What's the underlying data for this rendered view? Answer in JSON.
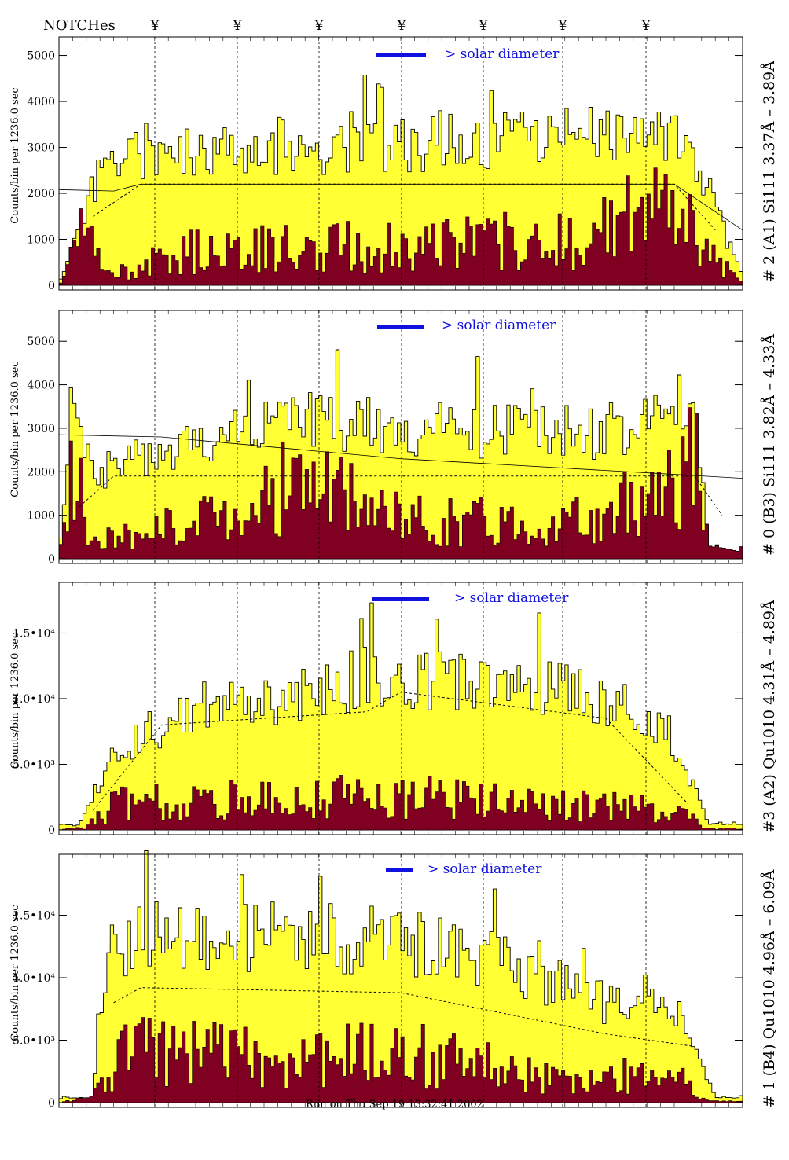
{
  "header": {
    "notches_label": "NOTCHes",
    "notch_symbol": "¥",
    "notch_positions": [
      197,
      302,
      406,
      511,
      615,
      716,
      822
    ]
  },
  "footer": {
    "run_text": "Run on Thu Sep 19 13:32:41 2002"
  },
  "colors": {
    "fill_total": "#ffff33",
    "fill_sub": "#7f0020",
    "outline": "#000000",
    "accent": "#1010e0"
  },
  "chart_data": [
    {
      "type": "area",
      "right_label": "# 2 (A1) Si111  3.37Å – 3.89Å",
      "ylabel": "Counts/bin per   1236.0 sec",
      "solar_label": "> solar diameter",
      "ylim": [
        0,
        5300
      ],
      "yticks": [
        0,
        1000,
        2000,
        3000,
        4000,
        5000
      ],
      "ytick_labels": [
        "0",
        "1000",
        "2000",
        "3000",
        "4000",
        "5000"
      ],
      "profile": [
        [
          0,
          0
        ],
        [
          0.05,
          2250
        ],
        [
          0.1,
          2900
        ],
        [
          0.5,
          3150
        ],
        [
          0.9,
          3200
        ],
        [
          0.95,
          2100
        ],
        [
          1,
          150
        ]
      ],
      "sub_profile": [
        [
          0,
          0
        ],
        [
          0.03,
          1400
        ],
        [
          0.07,
          200
        ],
        [
          0.2,
          750
        ],
        [
          0.5,
          850
        ],
        [
          0.75,
          1000
        ],
        [
          0.9,
          1800
        ],
        [
          0.97,
          400
        ],
        [
          1,
          100
        ]
      ],
      "dashed_profile": [
        [
          0.05,
          1500
        ],
        [
          0.12,
          2200
        ],
        [
          0.9,
          2200
        ],
        [
          0.96,
          1200
        ]
      ],
      "solid_profile": [
        [
          0,
          2080
        ],
        [
          0.08,
          2050
        ],
        [
          0.12,
          2200
        ],
        [
          0.9,
          2200
        ],
        [
          1,
          1200
        ]
      ],
      "seed": 11
    },
    {
      "type": "area",
      "right_label": "# 0 (B3) Si111  3.82Å – 4.33Å",
      "ylabel": "Counts/bin per   1236.0 sec",
      "solar_label": "> solar diameter",
      "ylim": [
        0,
        5600
      ],
      "yticks": [
        0,
        1000,
        2000,
        3000,
        4000,
        5000
      ],
      "ytick_labels": [
        "0",
        "1000",
        "2000",
        "3000",
        "4000",
        "5000"
      ],
      "profile": [
        [
          0,
          0
        ],
        [
          0.02,
          3200
        ],
        [
          0.05,
          2000
        ],
        [
          0.15,
          2400
        ],
        [
          0.3,
          3300
        ],
        [
          0.5,
          3000
        ],
        [
          0.8,
          2900
        ],
        [
          0.93,
          3600
        ],
        [
          0.95,
          300
        ],
        [
          1,
          200
        ]
      ],
      "sub_profile": [
        [
          0,
          0
        ],
        [
          0.02,
          2100
        ],
        [
          0.05,
          400
        ],
        [
          0.2,
          800
        ],
        [
          0.35,
          1800
        ],
        [
          0.5,
          900
        ],
        [
          0.8,
          850
        ],
        [
          0.93,
          2500
        ],
        [
          0.96,
          200
        ],
        [
          1,
          1500
        ]
      ],
      "dashed_profile": [
        [
          0.03,
          1200
        ],
        [
          0.08,
          1900
        ],
        [
          0.93,
          1900
        ],
        [
          0.97,
          1000
        ]
      ],
      "solid_profile": [
        [
          0,
          2850
        ],
        [
          0.15,
          2800
        ],
        [
          0.5,
          2300
        ],
        [
          1,
          1850
        ]
      ],
      "seed": 23
    },
    {
      "type": "area",
      "right_label": "#3 (A2) Qu1010  4.31Å – 4.89Å",
      "ylabel": "Counts/bin per   1236.0 sec",
      "solar_label": "> solar diameter",
      "ylim": [
        0,
        18500
      ],
      "yticks": [
        0,
        5000,
        10000,
        15000
      ],
      "ytick_labels": [
        "0",
        "5.0•10³",
        "1.0•10⁴",
        "1.5•10⁴"
      ],
      "profile": [
        [
          0,
          400
        ],
        [
          0.03,
          300
        ],
        [
          0.08,
          6000
        ],
        [
          0.2,
          9500
        ],
        [
          0.5,
          11500
        ],
        [
          0.8,
          10200
        ],
        [
          0.9,
          7000
        ],
        [
          0.95,
          500
        ],
        [
          1,
          500
        ]
      ],
      "sub_profile": [
        [
          0,
          0
        ],
        [
          0.04,
          200
        ],
        [
          0.08,
          2000
        ],
        [
          0.5,
          2600
        ],
        [
          0.9,
          1500
        ],
        [
          0.95,
          100
        ],
        [
          1,
          100
        ]
      ],
      "dashed_profile": [
        [
          0.05,
          1500
        ],
        [
          0.15,
          8000
        ],
        [
          0.45,
          9000
        ],
        [
          0.5,
          10500
        ],
        [
          0.8,
          8500
        ],
        [
          0.92,
          2000
        ]
      ],
      "solid_profile": [],
      "seed": 37
    },
    {
      "type": "area",
      "right_label": "# 1 (B4) Qu1010 4.96Å – 6.09Å",
      "ylabel": "Counts/bin per   1236.0 sec",
      "solar_label": "> solar diameter",
      "ylim": [
        0,
        19500
      ],
      "yticks": [
        0,
        5000,
        10000,
        15000
      ],
      "ytick_labels": [
        "0",
        "5.0•10³",
        "1.0•10⁴",
        "1.5•10⁴"
      ],
      "profile": [
        [
          0,
          400
        ],
        [
          0.05,
          500
        ],
        [
          0.07,
          12000
        ],
        [
          0.15,
          13500
        ],
        [
          0.5,
          13000
        ],
        [
          0.65,
          11000
        ],
        [
          0.8,
          8000
        ],
        [
          0.9,
          7500
        ],
        [
          0.96,
          400
        ],
        [
          1,
          500
        ]
      ],
      "sub_profile": [
        [
          0,
          0
        ],
        [
          0.05,
          600
        ],
        [
          0.1,
          4500
        ],
        [
          0.3,
          3500
        ],
        [
          0.5,
          4000
        ],
        [
          0.7,
          2200
        ],
        [
          0.9,
          2200
        ],
        [
          0.95,
          100
        ],
        [
          1,
          100
        ]
      ],
      "dashed_profile": [
        [
          0.08,
          8000
        ],
        [
          0.12,
          9200
        ],
        [
          0.5,
          8800
        ],
        [
          0.8,
          5500
        ],
        [
          0.93,
          4500
        ]
      ],
      "solid_profile": [],
      "seed": 53
    }
  ]
}
